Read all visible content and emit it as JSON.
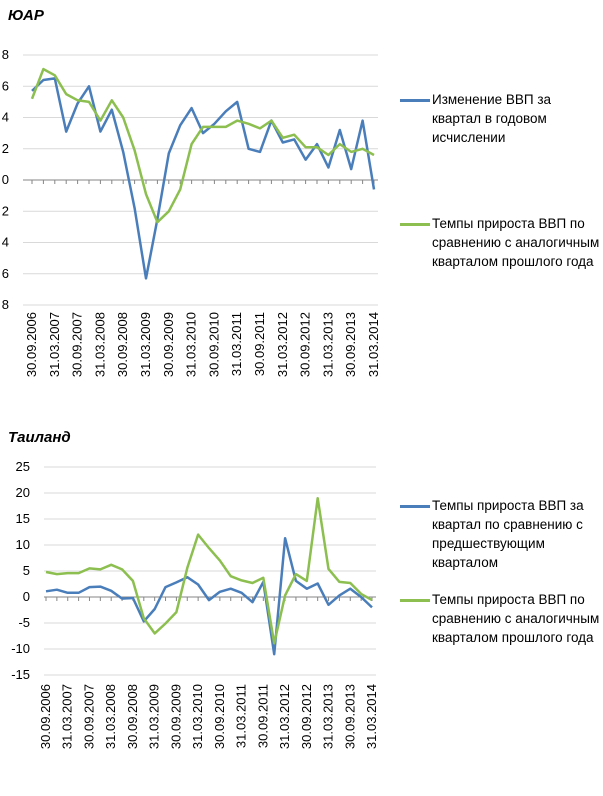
{
  "chart_data": [
    {
      "type": "line",
      "title": "ЮАР",
      "categories": [
        "30.09.2006",
        null,
        "31.03.2007",
        null,
        "30.09.2007",
        null,
        "31.03.2008",
        null,
        "30.09.2008",
        null,
        "31.03.2009",
        null,
        "30.09.2009",
        null,
        "31.03.2010",
        null,
        "30.09.2010",
        null,
        "31.03.2011",
        null,
        "30.09.2011",
        null,
        "31.03.2012",
        null,
        "30.09.2012",
        null,
        "31.03.2013",
        null,
        "30.09.2013",
        null,
        "31.03.2014"
      ],
      "series": [
        {
          "name": "Изменение  ВВП за квартал в годовом исчислении",
          "color": "#4a7ebb",
          "values": [
            5.7,
            6.4,
            6.5,
            3.1,
            4.9,
            6.0,
            3.1,
            4.5,
            1.8,
            -1.8,
            -6.3,
            -2.5,
            1.7,
            3.5,
            4.6,
            3.0,
            3.6,
            4.4,
            5.0,
            2.0,
            1.8,
            3.8,
            2.4,
            2.6,
            1.3,
            2.3,
            0.8,
            3.2,
            0.7,
            3.8,
            -0.6
          ]
        },
        {
          "name": "Темпы прироста ВВП по сравнению с аналогичным кварталом прошлого года",
          "color": "#8cbf4f",
          "values": [
            5.2,
            7.1,
            6.7,
            5.5,
            5.1,
            5.0,
            3.8,
            5.1,
            4.0,
            1.9,
            -0.9,
            -2.7,
            -2.0,
            -0.6,
            2.3,
            3.4,
            3.4,
            3.4,
            3.8,
            3.6,
            3.3,
            3.8,
            2.7,
            2.9,
            2.1,
            2.1,
            1.6,
            2.3,
            1.8,
            2.0,
            1.6
          ]
        }
      ],
      "ylim": [
        -8,
        8
      ],
      "yticks": [
        {
          "value": -8,
          "label": "8"
        },
        {
          "value": -6,
          "label": "6"
        },
        {
          "value": -4,
          "label": "4"
        },
        {
          "value": -2,
          "label": "2"
        },
        0,
        2,
        4,
        6,
        8
      ],
      "grid": true
    },
    {
      "type": "line",
      "title": "Таиланд",
      "categories": [
        "30.09.2006",
        null,
        "31.03.2007",
        null,
        "30.09.2007",
        null,
        "31.03.2008",
        null,
        "30.09.2008",
        null,
        "31.03.2009",
        null,
        "30.09.2009",
        null,
        "31.03.2010",
        null,
        "30.09.2010",
        null,
        "31.03.2011",
        null,
        "30.09.2011",
        null,
        "31.03.2012",
        null,
        "30.09.2012",
        null,
        "31.03.2013",
        null,
        "30.09.2013",
        null,
        "31.03.2014"
      ],
      "series": [
        {
          "name": "Темпы прироста ВВП за квартал по сравнению с предшествующим кварталом",
          "color": "#4a7ebb",
          "values": [
            1.1,
            1.4,
            0.8,
            0.8,
            1.9,
            2.0,
            1.2,
            -0.3,
            -0.2,
            -4.7,
            -2.3,
            1.9,
            2.8,
            3.8,
            2.4,
            -0.6,
            1.0,
            1.6,
            0.8,
            -1.0,
            2.9,
            -11.0,
            11.3,
            3.1,
            1.6,
            2.6,
            -1.5,
            0.3,
            1.6,
            0,
            -2.0
          ]
        },
        {
          "name": "Темпы прироста ВВП по сравнению с аналогичным кварталом прошлого года",
          "color": "#8cbf4f",
          "values": [
            4.8,
            4.4,
            4.6,
            4.6,
            5.5,
            5.3,
            6.2,
            5.3,
            3.1,
            -4.1,
            -7.0,
            -5.1,
            -2.9,
            5.6,
            12.0,
            9.4,
            7.0,
            4.0,
            3.2,
            2.7,
            3.7,
            -8.9,
            0.3,
            4.4,
            3.1,
            19.0,
            5.4,
            2.9,
            2.7,
            0.6,
            -0.6
          ]
        }
      ],
      "ylim": [
        -15,
        25
      ],
      "yticks": [
        -15,
        -10,
        -5,
        0,
        5,
        10,
        15,
        20,
        25
      ],
      "grid": true
    }
  ]
}
